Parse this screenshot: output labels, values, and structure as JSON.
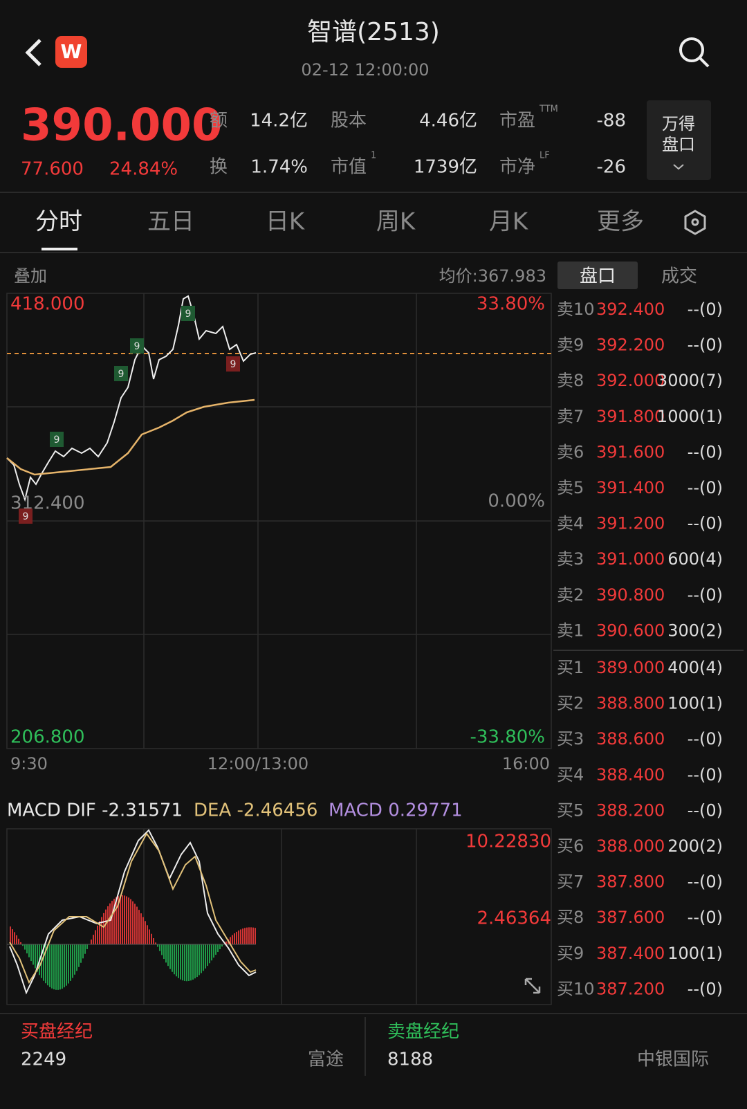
{
  "header": {
    "title": "智谱(2513)",
    "time": "02-12 12:00:00"
  },
  "quote": {
    "price": "390.000",
    "change": "77.600",
    "change_pct": "24.84%",
    "stats": [
      {
        "label": "额",
        "value": "14.2亿"
      },
      {
        "label": "股本",
        "value": "4.46亿"
      },
      {
        "label": "市盈",
        "sup": "TTM",
        "value": "-88"
      },
      {
        "label": "换",
        "value": "1.74%"
      },
      {
        "label": "市值",
        "sup": "1",
        "value": "1739亿"
      },
      {
        "label": "市净",
        "sup": "LF",
        "value": "-26"
      }
    ],
    "button": [
      "万得",
      "盘口"
    ]
  },
  "tabs": [
    "分时",
    "五日",
    "日K",
    "周K",
    "月K",
    "更多"
  ],
  "chart": {
    "overlay": "叠加",
    "avg_price": "均价:367.983",
    "high": "418.000",
    "mid": "312.400",
    "low": "206.800",
    "pct_high": "33.80%",
    "pct_mid": "0.00%",
    "pct_low": "-33.80%",
    "times": [
      "9:30",
      "12:00/13:00",
      "16:00"
    ],
    "marker": "9"
  },
  "macd": {
    "dif": "MACD DIF -2.31571",
    "dea": "DEA -2.46456",
    "macd": "MACD 0.29771",
    "top": "10.22830",
    "mid": "2.46364"
  },
  "order_book": {
    "tabs": [
      "盘口",
      "成交"
    ],
    "asks": [
      {
        "label": "卖10",
        "price": "392.400",
        "volume": "--(0)"
      },
      {
        "label": "卖9",
        "price": "392.200",
        "volume": "--(0)"
      },
      {
        "label": "卖8",
        "price": "392.000",
        "volume": "3000(7)"
      },
      {
        "label": "卖7",
        "price": "391.800",
        "volume": "1000(1)"
      },
      {
        "label": "卖6",
        "price": "391.600",
        "volume": "--(0)"
      },
      {
        "label": "卖5",
        "price": "391.400",
        "volume": "--(0)"
      },
      {
        "label": "卖4",
        "price": "391.200",
        "volume": "--(0)"
      },
      {
        "label": "卖3",
        "price": "391.000",
        "volume": "600(4)"
      },
      {
        "label": "卖2",
        "price": "390.800",
        "volume": "--(0)"
      },
      {
        "label": "卖1",
        "price": "390.600",
        "volume": "300(2)"
      }
    ],
    "bids": [
      {
        "label": "买1",
        "price": "389.000",
        "volume": "400(4)"
      },
      {
        "label": "买2",
        "price": "388.800",
        "volume": "100(1)"
      },
      {
        "label": "买3",
        "price": "388.600",
        "volume": "--(0)"
      },
      {
        "label": "买4",
        "price": "388.400",
        "volume": "--(0)"
      },
      {
        "label": "买5",
        "price": "388.200",
        "volume": "--(0)"
      },
      {
        "label": "买6",
        "price": "388.000",
        "volume": "200(2)"
      },
      {
        "label": "买7",
        "price": "387.800",
        "volume": "--(0)"
      },
      {
        "label": "买8",
        "price": "387.600",
        "volume": "--(0)"
      },
      {
        "label": "买9",
        "price": "387.400",
        "volume": "100(1)"
      },
      {
        "label": "买10",
        "price": "387.200",
        "volume": "--(0)"
      }
    ]
  },
  "brokers": [
    {
      "title": "买盘经纪",
      "count": "2249",
      "name": "富途"
    },
    {
      "title": "卖盘经纪",
      "count": "8188",
      "name": "中银国际"
    }
  ]
}
